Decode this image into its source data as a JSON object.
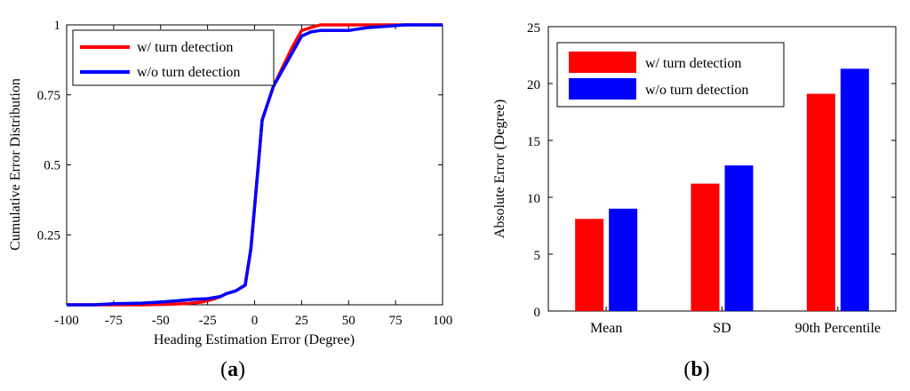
{
  "chart_data": [
    {
      "type": "line",
      "panel_label": [
        "(",
        "a",
        ")"
      ],
      "xlabel": "Heading Estimation Error (Degree)",
      "ylabel": "Cumulative Error Distribution",
      "xlim": [
        -100,
        100
      ],
      "ylim": [
        0,
        1
      ],
      "xticks": [
        -100,
        -75,
        -50,
        -25,
        0,
        25,
        50,
        75,
        100
      ],
      "yticks": [
        {
          "value": 1,
          "label": "1"
        },
        {
          "value": 0.75,
          "label": "0.75"
        },
        {
          "value": 0.5,
          "label": "0.5"
        },
        {
          "value": 0.25,
          "label": "0.25"
        }
      ],
      "grid": false,
      "legend_position": "top-left",
      "series": [
        {
          "name": "w/ turn detection",
          "color": "#ff0000",
          "x": [
            -100,
            -80,
            -60,
            -45,
            -35,
            -28,
            -22,
            -18,
            -15,
            -10,
            -5,
            -2,
            0,
            2,
            4,
            6,
            8,
            10,
            15,
            20,
            25,
            30,
            35,
            40,
            50,
            60,
            70,
            80,
            90,
            100
          ],
          "y": [
            0,
            0,
            0,
            0.002,
            0.005,
            0.01,
            0.02,
            0.03,
            0.04,
            0.05,
            0.07,
            0.2,
            0.35,
            0.5,
            0.66,
            0.7,
            0.74,
            0.78,
            0.85,
            0.92,
            0.98,
            0.99,
            1,
            1,
            1,
            1,
            1,
            1,
            1,
            1
          ]
        },
        {
          "name": "w/o turn detection",
          "color": "#0000ff",
          "x": [
            -100,
            -85,
            -75,
            -60,
            -50,
            -40,
            -32,
            -25,
            -18,
            -15,
            -10,
            -5,
            -2,
            0,
            2,
            4,
            6,
            8,
            10,
            15,
            20,
            25,
            30,
            35,
            50,
            55,
            60,
            70,
            80,
            90,
            100
          ],
          "y": [
            0,
            0,
            0.004,
            0.006,
            0.01,
            0.015,
            0.02,
            0.022,
            0.03,
            0.04,
            0.05,
            0.07,
            0.2,
            0.35,
            0.5,
            0.66,
            0.7,
            0.74,
            0.78,
            0.84,
            0.9,
            0.96,
            0.975,
            0.98,
            0.98,
            0.985,
            0.99,
            0.995,
            1,
            1,
            1
          ]
        }
      ]
    },
    {
      "type": "bar",
      "panel_label": [
        "(",
        "b",
        ")"
      ],
      "categories": [
        "Mean",
        "SD",
        "90th Percentile"
      ],
      "xlabel": "",
      "ylabel": "Absolute Error (Degree)",
      "ylim": [
        0,
        25
      ],
      "yticks": [
        0,
        5,
        10,
        15,
        20,
        25
      ],
      "grid": false,
      "legend_position": "top-left",
      "series": [
        {
          "name": "w/ turn detection",
          "color": "#ff0000",
          "values": [
            8.1,
            11.2,
            19.1
          ]
        },
        {
          "name": "w/o turn detection",
          "color": "#0000ff",
          "values": [
            9.0,
            12.8,
            21.3
          ]
        }
      ]
    }
  ]
}
